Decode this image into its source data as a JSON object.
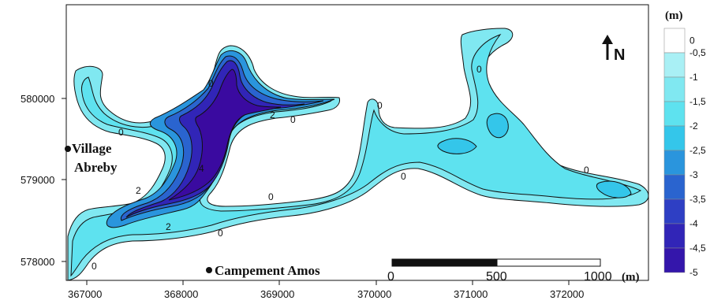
{
  "map": {
    "x_ticks": [
      "367000",
      "368000",
      "369000",
      "370000",
      "371000",
      "372000"
    ],
    "y_ticks": [
      "580000",
      "579000",
      "578000"
    ],
    "places": [
      {
        "name": "Village",
        "marker": "filled-circle"
      },
      {
        "name": "Abreby",
        "marker": "none"
      },
      {
        "name": "Campement Amos",
        "marker": "filled-circle"
      }
    ],
    "contour_labels": [
      "0",
      "0",
      "0",
      "0",
      "0",
      "0",
      "0",
      "0",
      "2",
      "2",
      "4",
      "2",
      "0",
      "0"
    ],
    "north_arrow": {
      "icon": "north-arrow-icon",
      "label": "N"
    }
  },
  "legend": {
    "unit": "(m)",
    "levels": [
      {
        "label": "0",
        "color": "#ffffff"
      },
      {
        "label": "-0,5",
        "color": "#a9f0f5"
      },
      {
        "label": "-1",
        "color": "#80e8f1"
      },
      {
        "label": "-1,5",
        "color": "#5ee2ef"
      },
      {
        "label": "-2",
        "color": "#34c6ea"
      },
      {
        "label": "-2,5",
        "color": "#2a95dd"
      },
      {
        "label": "-3",
        "color": "#2a64cf"
      },
      {
        "label": "-3,5",
        "color": "#2e3fc4"
      },
      {
        "label": "-4",
        "color": "#3125b7"
      },
      {
        "label": "-4,5",
        "color": "#3416ab"
      },
      {
        "label": "-5",
        "color": "#3a0aa0"
      }
    ]
  },
  "scale_bar": {
    "labels": [
      "0",
      "500",
      "1000"
    ],
    "unit": "(m)"
  }
}
